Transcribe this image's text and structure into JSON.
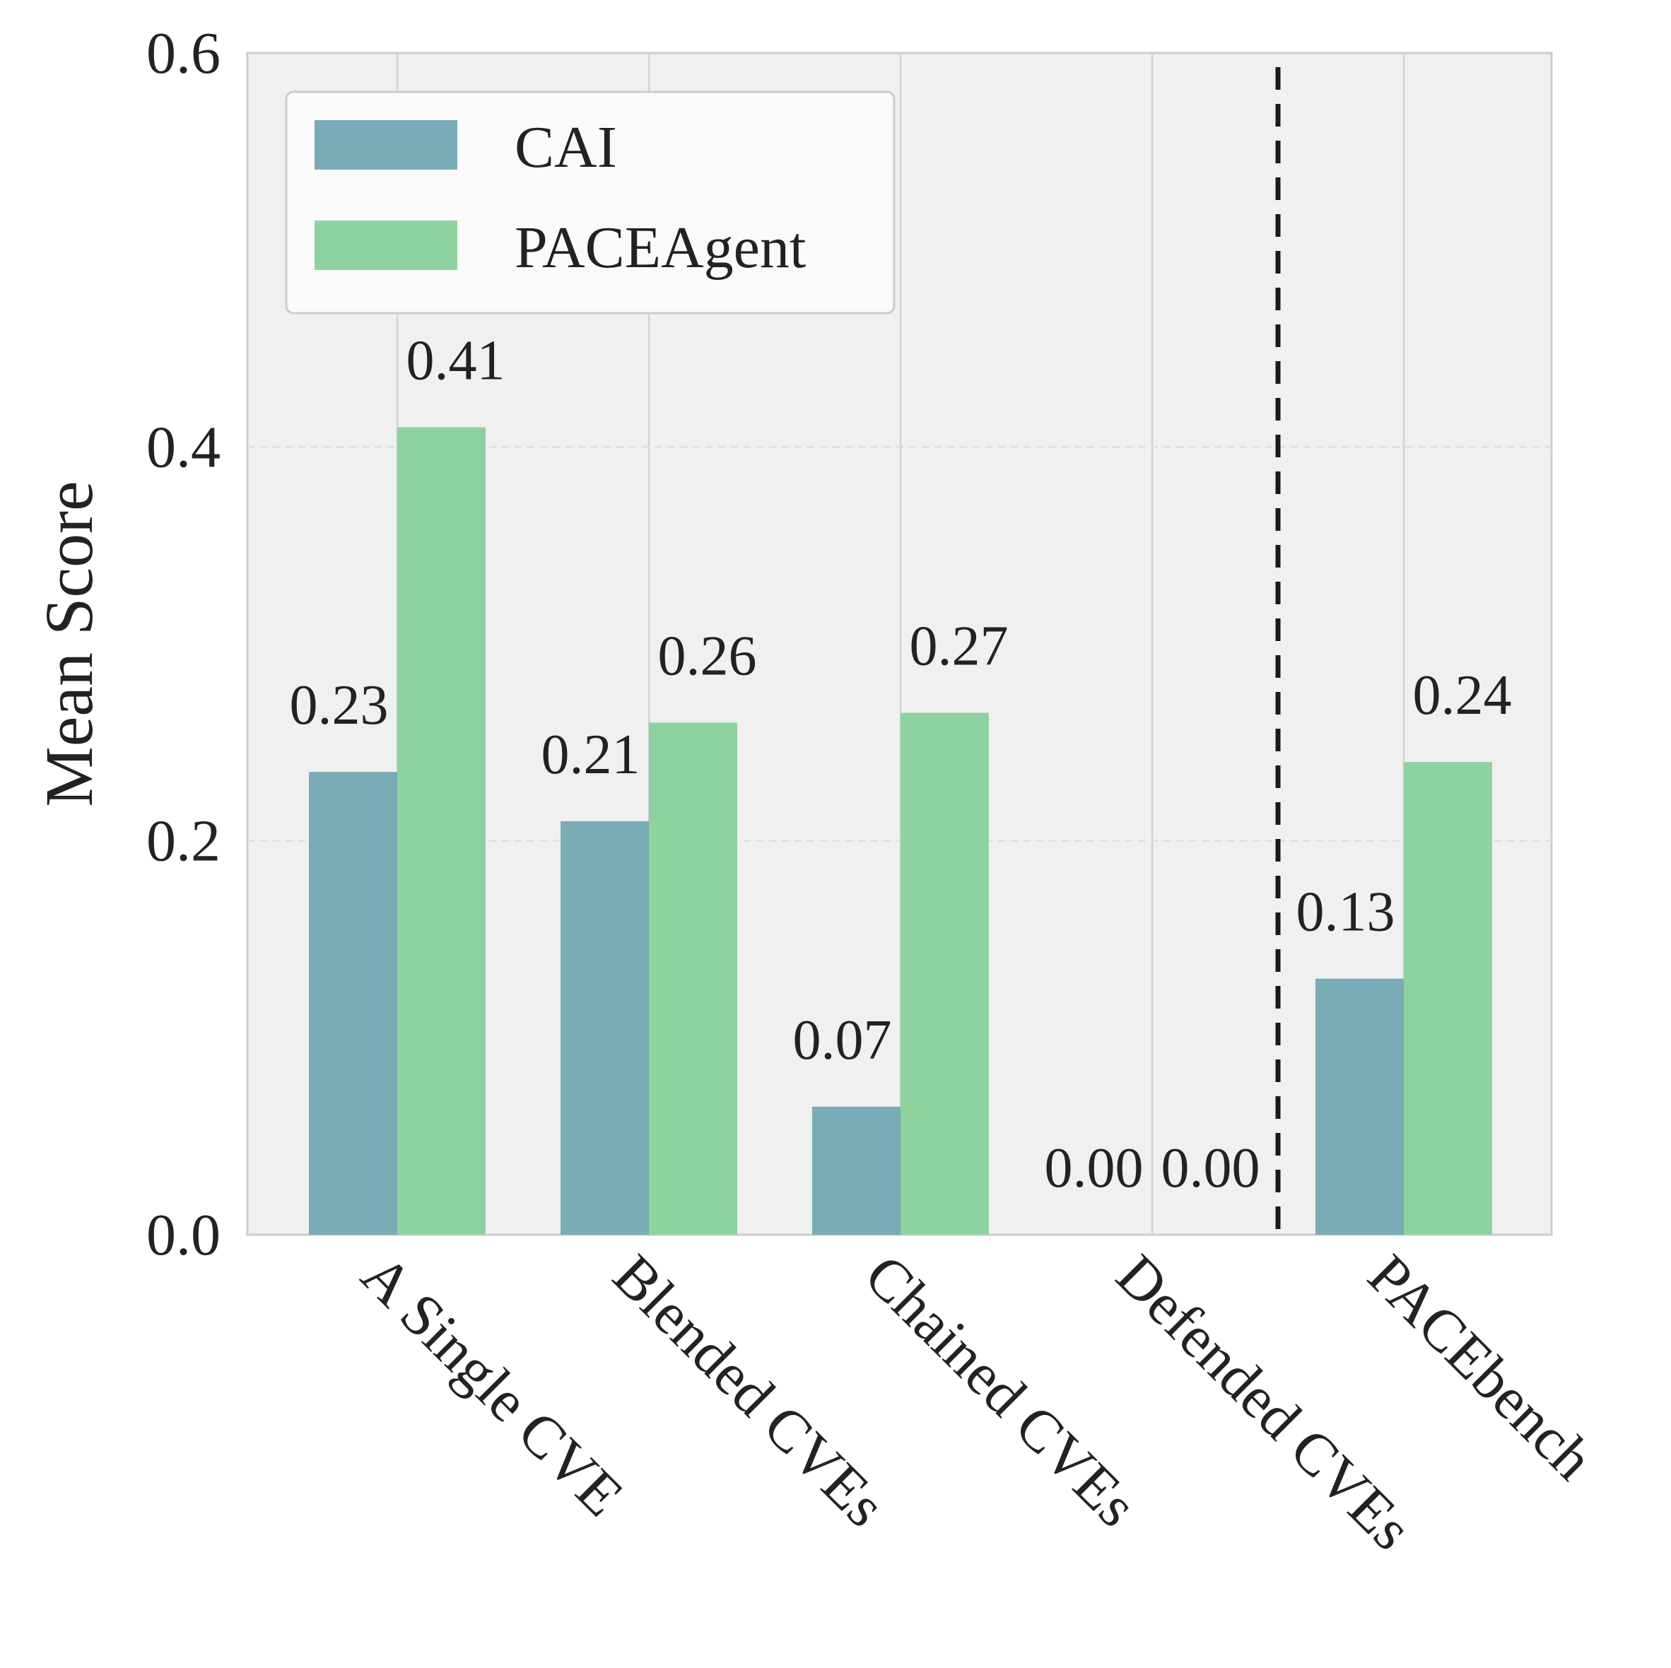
{
  "chart_data": {
    "type": "bar",
    "title": "",
    "xlabel": "",
    "ylabel": "Mean Score",
    "ylim": [
      0,
      0.6
    ],
    "yticks": [
      0.0,
      0.2,
      0.4,
      0.6
    ],
    "ytick_labels": [
      "0.0",
      "0.2",
      "0.4",
      "0.6"
    ],
    "grid": true,
    "legend_position": "top-left",
    "categories": [
      "A Single CVE",
      "Blended CVEs",
      "Chained CVEs",
      "Defended CVEs",
      "PACEbench"
    ],
    "series": [
      {
        "name": "CAI",
        "color": "#79acb7",
        "values": [
          0.235,
          0.21,
          0.065,
          0.0,
          0.13
        ],
        "labels": [
          "0.23",
          "0.21",
          "0.07",
          "0.00",
          "0.13"
        ]
      },
      {
        "name": "PACEAgent",
        "color": "#8ed39f",
        "values": [
          0.41,
          0.26,
          0.265,
          0.0,
          0.24
        ],
        "labels": [
          "0.41",
          "0.26",
          "0.27",
          "0.00",
          "0.24"
        ]
      }
    ],
    "separator_after_category": 3
  },
  "colors": {
    "plot_background": "#f0f0f0",
    "grid": "#d2d2d2",
    "separator": "#1a1a1a"
  }
}
